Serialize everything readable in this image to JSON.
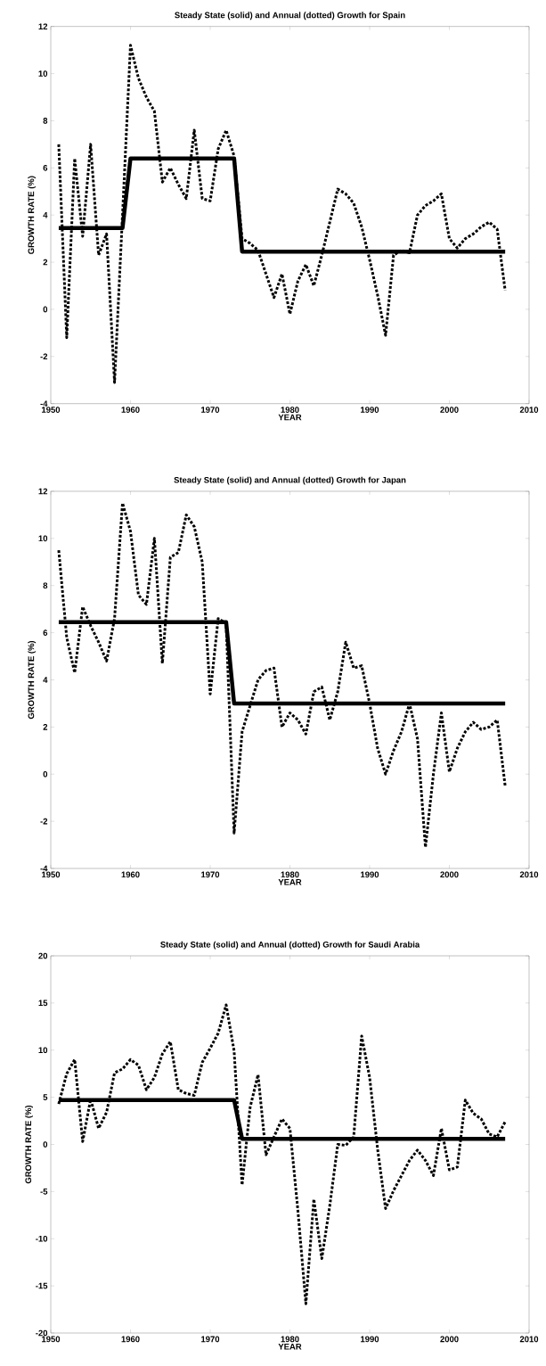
{
  "chart_data": [
    {
      "type": "line",
      "title": "Steady State (solid) and Annual (dotted) Growth for Spain",
      "xlabel": "YEAR",
      "ylabel": "GROWTH RATE (%)",
      "x": [
        1951,
        1952,
        1953,
        1954,
        1955,
        1956,
        1957,
        1958,
        1959,
        1960,
        1961,
        1962,
        1963,
        1964,
        1965,
        1966,
        1967,
        1968,
        1969,
        1970,
        1971,
        1972,
        1973,
        1974,
        1975,
        1976,
        1977,
        1978,
        1979,
        1980,
        1981,
        1982,
        1983,
        1984,
        1985,
        1986,
        1987,
        1988,
        1989,
        1990,
        1991,
        1992,
        1993,
        1994,
        1995,
        1996,
        1997,
        1998,
        1999,
        2000,
        2001,
        2002,
        2003,
        2004,
        2005,
        2006,
        2007
      ],
      "series": [
        {
          "color": "#000000",
          "line_style": "dotted",
          "values": [
            7.0,
            -1.2,
            6.4,
            3.1,
            7.0,
            2.3,
            3.2,
            -3.1,
            4.0,
            11.2,
            9.8,
            9.0,
            8.4,
            5.4,
            6.0,
            5.3,
            4.7,
            7.6,
            4.7,
            4.6,
            6.8,
            7.6,
            6.5,
            3.0,
            2.8,
            2.5,
            1.5,
            0.5,
            1.5,
            -0.2,
            1.2,
            1.9,
            1.0,
            2.3,
            3.7,
            5.1,
            4.9,
            4.5,
            3.5,
            2.1,
            0.6,
            -1.1,
            2.3,
            2.5,
            2.4,
            4.0,
            4.4,
            4.6,
            4.9,
            3.0,
            2.6,
            3.0,
            3.2,
            3.5,
            3.7,
            3.4,
            0.8
          ]
        },
        {
          "color": "#000000",
          "line_style": "solid",
          "values": [
            3.45,
            3.45,
            3.45,
            3.45,
            3.45,
            3.45,
            3.45,
            3.45,
            3.45,
            6.4,
            6.4,
            6.4,
            6.4,
            6.4,
            6.4,
            6.4,
            6.4,
            6.4,
            6.4,
            6.4,
            6.4,
            6.4,
            6.4,
            2.45,
            2.45,
            2.45,
            2.45,
            2.45,
            2.45,
            2.45,
            2.45,
            2.45,
            2.45,
            2.45,
            2.45,
            2.45,
            2.45,
            2.45,
            2.45,
            2.45,
            2.45,
            2.45,
            2.45,
            2.45,
            2.45,
            2.45,
            2.45,
            2.45,
            2.45,
            2.45,
            2.45,
            2.45,
            2.45,
            2.45,
            2.45,
            2.45,
            2.45
          ]
        }
      ],
      "xlim": [
        1950,
        2010
      ],
      "xticks": [
        1950,
        1960,
        1970,
        1980,
        1990,
        2000,
        2010
      ],
      "ylim": [
        -4,
        12
      ],
      "yticks": [
        -4,
        -2,
        0,
        2,
        4,
        6,
        8,
        10,
        12
      ]
    },
    {
      "type": "line",
      "title": "Steady State (solid) and Annual (dotted) Growth for Japan",
      "xlabel": "YEAR",
      "ylabel": "GROWTH RATE (%)",
      "x": [
        1951,
        1952,
        1953,
        1954,
        1955,
        1956,
        1957,
        1958,
        1959,
        1960,
        1961,
        1962,
        1963,
        1964,
        1965,
        1966,
        1967,
        1968,
        1969,
        1970,
        1971,
        1972,
        1973,
        1974,
        1975,
        1976,
        1977,
        1978,
        1979,
        1980,
        1981,
        1982,
        1983,
        1984,
        1985,
        1986,
        1987,
        1988,
        1989,
        1990,
        1991,
        1992,
        1993,
        1994,
        1995,
        1996,
        1997,
        1998,
        1999,
        2000,
        2001,
        2002,
        2003,
        2004,
        2005,
        2006,
        2007
      ],
      "series": [
        {
          "color": "#000000",
          "line_style": "dotted",
          "values": [
            9.5,
            5.8,
            4.3,
            7.1,
            6.3,
            5.6,
            4.8,
            6.6,
            11.5,
            10.3,
            7.6,
            7.2,
            10.0,
            4.7,
            9.2,
            9.4,
            11.0,
            10.5,
            9.0,
            3.4,
            6.6,
            6.4,
            -2.5,
            1.8,
            2.9,
            4.0,
            4.4,
            4.5,
            2.0,
            2.6,
            2.3,
            1.7,
            3.5,
            3.7,
            2.3,
            3.5,
            5.6,
            4.5,
            4.6,
            3.0,
            1.1,
            0.0,
            1.0,
            1.8,
            3.0,
            1.5,
            -3.1,
            0.0,
            2.6,
            0.1,
            1.1,
            1.8,
            2.2,
            1.9,
            2.0,
            2.3,
            -0.5
          ]
        },
        {
          "color": "#000000",
          "line_style": "solid",
          "values": [
            6.45,
            6.45,
            6.45,
            6.45,
            6.45,
            6.45,
            6.45,
            6.45,
            6.45,
            6.45,
            6.45,
            6.45,
            6.45,
            6.45,
            6.45,
            6.45,
            6.45,
            6.45,
            6.45,
            6.45,
            6.45,
            6.45,
            3.0,
            3.0,
            3.0,
            3.0,
            3.0,
            3.0,
            3.0,
            3.0,
            3.0,
            3.0,
            3.0,
            3.0,
            3.0,
            3.0,
            3.0,
            3.0,
            3.0,
            3.0,
            3.0,
            3.0,
            3.0,
            3.0,
            3.0,
            3.0,
            3.0,
            3.0,
            3.0,
            3.0,
            3.0,
            3.0,
            3.0,
            3.0,
            3.0,
            3.0,
            3.0
          ]
        }
      ],
      "xlim": [
        1950,
        2010
      ],
      "xticks": [
        1950,
        1960,
        1970,
        1980,
        1990,
        2000,
        2010
      ],
      "ylim": [
        -4,
        12
      ],
      "yticks": [
        -4,
        -2,
        0,
        2,
        4,
        6,
        8,
        10,
        12
      ]
    },
    {
      "type": "line",
      "title": "Steady State (solid) and Annual (dotted) Growth for Saudi Arabia",
      "xlabel": "YEAR",
      "ylabel": "GROWTH RATE (%)",
      "x": [
        1951,
        1952,
        1953,
        1954,
        1955,
        1956,
        1957,
        1958,
        1959,
        1960,
        1961,
        1962,
        1963,
        1964,
        1965,
        1966,
        1967,
        1968,
        1969,
        1970,
        1971,
        1972,
        1973,
        1974,
        1975,
        1976,
        1977,
        1978,
        1979,
        1980,
        1981,
        1982,
        1983,
        1984,
        1985,
        1986,
        1987,
        1988,
        1989,
        1990,
        1991,
        1992,
        1993,
        1994,
        1995,
        1996,
        1997,
        1998,
        1999,
        2000,
        2001,
        2002,
        2003,
        2004,
        2005,
        2006,
        2007
      ],
      "series": [
        {
          "color": "#000000",
          "line_style": "dotted",
          "values": [
            4.3,
            7.5,
            9.0,
            0.3,
            4.8,
            1.7,
            3.4,
            7.6,
            8.0,
            9.0,
            8.4,
            5.8,
            7.1,
            9.6,
            10.9,
            5.8,
            5.4,
            5.2,
            8.7,
            10.2,
            11.8,
            14.8,
            9.9,
            -4.3,
            3.9,
            7.4,
            -1.1,
            0.8,
            2.7,
            1.7,
            -7.0,
            -16.9,
            -5.8,
            -12.1,
            -6.5,
            0.0,
            -0.1,
            0.8,
            11.5,
            7.1,
            -0.5,
            -6.8,
            -4.9,
            -3.3,
            -1.7,
            -0.6,
            -1.7,
            -3.3,
            1.7,
            -2.7,
            -2.4,
            4.7,
            3.3,
            2.7,
            1.1,
            0.8,
            2.4
          ]
        },
        {
          "color": "#000000",
          "line_style": "solid",
          "values": [
            4.7,
            4.7,
            4.7,
            4.7,
            4.7,
            4.7,
            4.7,
            4.7,
            4.7,
            4.7,
            4.7,
            4.7,
            4.7,
            4.7,
            4.7,
            4.7,
            4.7,
            4.7,
            4.7,
            4.7,
            4.7,
            4.7,
            4.7,
            0.6,
            0.6,
            0.6,
            0.6,
            0.6,
            0.6,
            0.6,
            0.6,
            0.6,
            0.6,
            0.6,
            0.6,
            0.6,
            0.6,
            0.6,
            0.6,
            0.6,
            0.6,
            0.6,
            0.6,
            0.6,
            0.6,
            0.6,
            0.6,
            0.6,
            0.6,
            0.6,
            0.6,
            0.6,
            0.6,
            0.6,
            0.6,
            0.6,
            0.6
          ]
        }
      ],
      "xlim": [
        1950,
        2010
      ],
      "xticks": [
        1950,
        1960,
        1970,
        1980,
        1990,
        2000,
        2010
      ],
      "ylim": [
        -20,
        20
      ],
      "yticks": [
        -20,
        -15,
        -10,
        -5,
        0,
        5,
        10,
        15,
        20
      ]
    }
  ]
}
